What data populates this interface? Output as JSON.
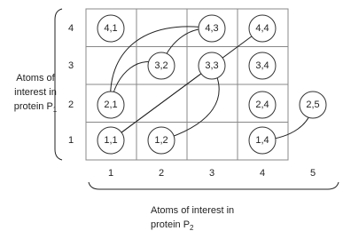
{
  "row_labels": [
    "4",
    "3",
    "2",
    "1"
  ],
  "column_labels": [
    "1",
    "2",
    "3",
    "4",
    "5"
  ],
  "nodes": [
    {
      "label": "4,1"
    },
    {
      "label": "4,3"
    },
    {
      "label": "4,4"
    },
    {
      "label": "3,2"
    },
    {
      "label": "3,3"
    },
    {
      "label": "3,4"
    },
    {
      "label": "2,1"
    },
    {
      "label": "2,4"
    },
    {
      "label": "2,5"
    },
    {
      "label": "1,1"
    },
    {
      "label": "1,2"
    },
    {
      "label": "1,4"
    }
  ],
  "y_axis_label": {
    "lines": [
      "Atoms of",
      "interest in",
      "protein P"
    ],
    "subscript": "1"
  },
  "x_axis_label": {
    "lines": [
      "Atoms of interest in",
      "protein P"
    ],
    "subscript": "2"
  }
}
